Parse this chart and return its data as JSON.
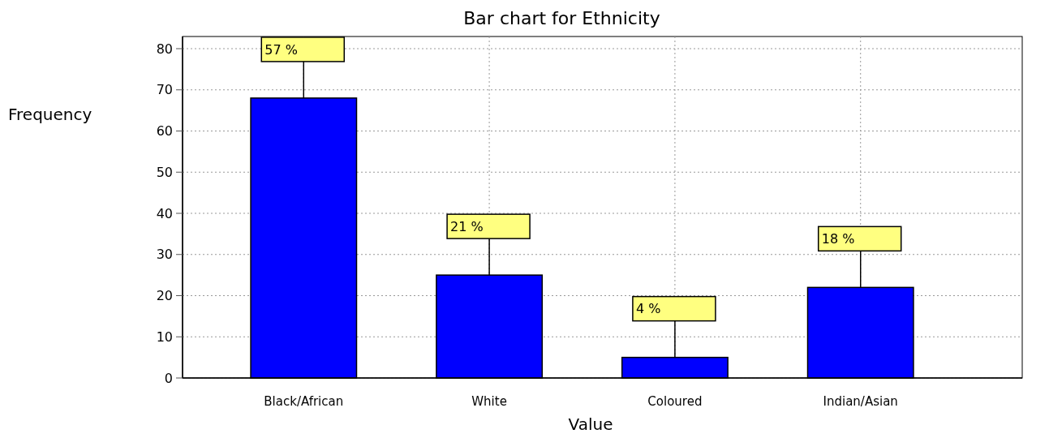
{
  "chart_data": {
    "type": "bar",
    "title": "Bar chart for Ethnicity",
    "xlabel": "Value",
    "ylabel": "Frequency",
    "categories": [
      "Black/African",
      "White",
      "Coloured",
      "Indian/Asian"
    ],
    "values": [
      68,
      25,
      5,
      22
    ],
    "annotations": [
      {
        "text": "57 %",
        "x": "Black/African",
        "y": 68
      },
      {
        "text": "21 %",
        "x": "White",
        "y": 25
      },
      {
        "text": "4 %",
        "x": "Coloured",
        "y": 5
      },
      {
        "text": "18 %",
        "x": "Indian/Asian",
        "y": 22
      }
    ],
    "color": "#0000ff",
    "ylim": [
      0,
      80
    ],
    "yticks": [
      0,
      10,
      20,
      30,
      40,
      50,
      60,
      70,
      80
    ],
    "grid": true
  }
}
